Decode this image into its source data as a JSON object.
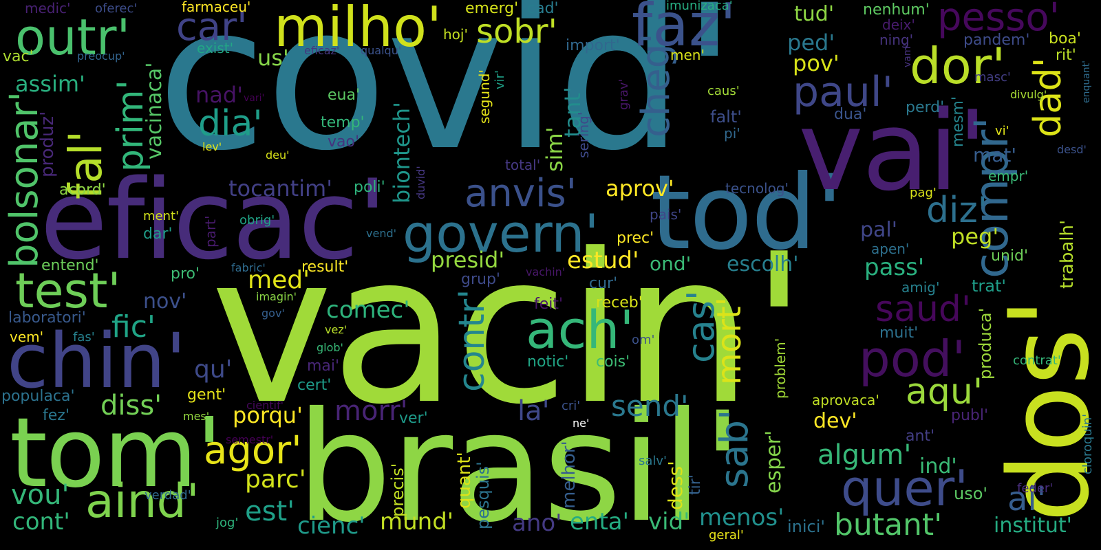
{
  "words": [
    {
      "text": "covid'",
      "color": "#2a788e"
    },
    {
      "text": "vacin'",
      "color": "#a0da39"
    },
    {
      "text": "brasil'",
      "color": "#8ed645"
    },
    {
      "text": "dos'",
      "color": "#c8e020"
    },
    {
      "text": "eficac'",
      "color": "#472c7a"
    },
    {
      "text": "tod'",
      "color": "#2f6c8e"
    },
    {
      "text": "vai'",
      "color": "#481f70"
    },
    {
      "text": "tom'",
      "color": "#7ad151"
    },
    {
      "text": "chin'",
      "color": "#414487"
    },
    {
      "text": "milho'",
      "color": "#d0e11c"
    },
    {
      "text": "faz'",
      "color": "#3b528b"
    },
    {
      "text": "outr'",
      "color": "#4ac16d"
    },
    {
      "text": "govern'",
      "color": "#2c728e"
    },
    {
      "text": "test'",
      "color": "#6ece58"
    },
    {
      "text": "bolsonar'",
      "color": "#50c46a"
    },
    {
      "text": "fal'",
      "color": "#b5de2b"
    },
    {
      "text": "aind'",
      "color": "#7fd34e"
    },
    {
      "text": "quer'",
      "color": "#3e4c8a"
    },
    {
      "text": "pod'",
      "color": "#440f5e"
    },
    {
      "text": "ach'",
      "color": "#35b779"
    },
    {
      "text": "compr'",
      "color": "#31688e"
    },
    {
      "text": "dor'",
      "color": "#bade28"
    },
    {
      "text": "paul'",
      "color": "#3f4788"
    },
    {
      "text": "pesso'",
      "color": "#46085c"
    },
    {
      "text": "cheg'",
      "color": "#355f8d"
    },
    {
      "text": "car'",
      "color": "#404387"
    },
    {
      "text": "sobr'",
      "color": "#bfdf25"
    },
    {
      "text": "dad'",
      "color": "#dde318"
    },
    {
      "text": "anvis'",
      "color": "#3b518b"
    },
    {
      "text": "prim'",
      "color": "#32b67a"
    },
    {
      "text": "dia'",
      "color": "#1f9e89"
    },
    {
      "text": "agor'",
      "color": "#e7e419"
    },
    {
      "text": "diz'",
      "color": "#2d708e"
    },
    {
      "text": "saud'",
      "color": "#46075a"
    },
    {
      "text": "contr'",
      "color": "#24868e"
    },
    {
      "text": "cas'",
      "color": "#26828e"
    },
    {
      "text": "mort'",
      "color": "#dce319"
    },
    {
      "text": "sab'",
      "color": "#2b758e"
    },
    {
      "text": "aqu'",
      "color": "#9bd93c"
    },
    {
      "text": "ai'",
      "color": "#365d8d"
    },
    {
      "text": "butant'",
      "color": "#52c569"
    },
    {
      "text": "algum'",
      "color": "#37b878"
    },
    {
      "text": "fic'",
      "color": "#20a486"
    },
    {
      "text": "diss'",
      "color": "#73d056"
    },
    {
      "text": "morr'",
      "color": "#482475"
    },
    {
      "text": "send'",
      "color": "#2a788e"
    },
    {
      "text": "est'",
      "color": "#1fa088"
    },
    {
      "text": "parc'",
      "color": "#d2e21b"
    },
    {
      "text": "vou'",
      "color": "#35b779"
    },
    {
      "text": "mund'",
      "color": "#c2df23"
    },
    {
      "text": "cienc'",
      "color": "#1f9a8a"
    },
    {
      "text": "menos'",
      "color": "#21908d"
    },
    {
      "text": "enta'",
      "color": "#25ac82"
    },
    {
      "text": "ano'",
      "color": "#443a83"
    },
    {
      "text": "vid'",
      "color": "#3aba76"
    },
    {
      "text": "la'",
      "color": "#3f4889"
    },
    {
      "text": "porqu'",
      "color": "#fde725"
    },
    {
      "text": "qu'",
      "color": "#3e4a89"
    },
    {
      "text": "med'",
      "color": "#e2e418"
    },
    {
      "text": "presid'",
      "color": "#95d840"
    },
    {
      "text": "estud'",
      "color": "#fde725"
    },
    {
      "text": "comec'",
      "color": "#2eb37c"
    },
    {
      "text": "tocantim'",
      "color": "#424086"
    },
    {
      "text": "nad'",
      "color": "#471365"
    },
    {
      "text": "assim'",
      "color": "#29af7f"
    },
    {
      "text": "vacinaca'",
      "color": "#56c667"
    },
    {
      "text": "biontech'",
      "color": "#1f968b"
    },
    {
      "text": "sim'",
      "color": "#8bd646"
    },
    {
      "text": "tant'",
      "color": "#228d8d"
    },
    {
      "text": "aprov'",
      "color": "#fde725"
    },
    {
      "text": "mesm'",
      "color": "#25858e"
    },
    {
      "text": "pass'",
      "color": "#2ab07f"
    },
    {
      "text": "escolh'",
      "color": "#277f8e"
    },
    {
      "text": "ond'",
      "color": "#3aba76"
    },
    {
      "text": "peg'",
      "color": "#c0df25"
    },
    {
      "text": "pal'",
      "color": "#404688"
    },
    {
      "text": "ped'",
      "color": "#2a788e"
    },
    {
      "text": "pov'",
      "color": "#d8e219"
    },
    {
      "text": "tud'",
      "color": "#8fd744"
    },
    {
      "text": "nenhum'",
      "color": "#5ec962"
    },
    {
      "text": "us'",
      "color": "#86d549"
    },
    {
      "text": "emerg'",
      "color": "#d5e21a"
    },
    {
      "text": "cad'",
      "color": "#287c8e"
    },
    {
      "text": "imunizaca'",
      "color": "#27ad81"
    },
    {
      "text": "farmaceu'",
      "color": "#fde725"
    },
    {
      "text": "medic'",
      "color": "#482173"
    },
    {
      "text": "oferec'",
      "color": "#3d4d8a"
    },
    {
      "text": "hoj'",
      "color": "#c5e021"
    },
    {
      "text": "exist'",
      "color": "#22a785"
    },
    {
      "text": "eficaz'",
      "color": "#453781"
    },
    {
      "text": "qualqu'",
      "color": "#3b528b"
    },
    {
      "text": "import'",
      "color": "#31688e"
    },
    {
      "text": "men'",
      "color": "#d8e219"
    },
    {
      "text": "vac'",
      "color": "#addc30"
    },
    {
      "text": "preocup'",
      "color": "#32648e"
    },
    {
      "text": "eua'",
      "color": "#5cc863"
    },
    {
      "text": "temp'",
      "color": "#34b679"
    },
    {
      "text": "vao'",
      "color": "#46337e"
    },
    {
      "text": "vari'",
      "color": "#440154"
    },
    {
      "text": "segund'",
      "color": "#e5e419"
    },
    {
      "text": "vir'",
      "color": "#1fa187"
    },
    {
      "text": "produz'",
      "color": "#482878"
    },
    {
      "text": "acord'",
      "color": "#8fd744"
    },
    {
      "text": "lev'",
      "color": "#e2e418"
    },
    {
      "text": "deu'",
      "color": "#d8e219"
    },
    {
      "text": "caus'",
      "color": "#a2da37"
    },
    {
      "text": "falt'",
      "color": "#3d4e8a"
    },
    {
      "text": "pi'",
      "color": "#31688e"
    },
    {
      "text": "grav'",
      "color": "#481668"
    },
    {
      "text": "sering'",
      "color": "#3e4989"
    },
    {
      "text": "total'",
      "color": "#453882"
    },
    {
      "text": "duvid'",
      "color": "#453781"
    },
    {
      "text": "poli'",
      "color": "#2eb37c"
    },
    {
      "text": "tecnolog'",
      "color": "#3b528b"
    },
    {
      "text": "pais'",
      "color": "#404688"
    },
    {
      "text": "obrig'",
      "color": "#20a386"
    },
    {
      "text": "ment'",
      "color": "#d2e21b"
    },
    {
      "text": "dar'",
      "color": "#1f9e89"
    },
    {
      "text": "part'",
      "color": "#481b6d"
    },
    {
      "text": "vend'",
      "color": "#2d708e"
    },
    {
      "text": "prec'",
      "color": "#fde725"
    },
    {
      "text": "entend'",
      "color": "#6ccd5a"
    },
    {
      "text": "fabric'",
      "color": "#2f6b8e"
    },
    {
      "text": "result'",
      "color": "#fde725"
    },
    {
      "text": "vachin'",
      "color": "#481769"
    },
    {
      "text": "grup'",
      "color": "#3e4a89"
    },
    {
      "text": "pro'",
      "color": "#3dbc74"
    },
    {
      "text": "nov'",
      "color": "#3c508b"
    },
    {
      "text": "imagin'",
      "color": "#8bd646"
    },
    {
      "text": "laboratori'",
      "color": "#38598c"
    },
    {
      "text": "gov'",
      "color": "#355f8d"
    },
    {
      "text": "vem'",
      "color": "#fde725"
    },
    {
      "text": "fas'",
      "color": "#26818e"
    },
    {
      "text": "vez'",
      "color": "#b8de29"
    },
    {
      "text": "glob'",
      "color": "#38b977"
    },
    {
      "text": "mai'",
      "color": "#482677"
    },
    {
      "text": "cert'",
      "color": "#1e9c89"
    },
    {
      "text": "gent'",
      "color": "#e5e419"
    },
    {
      "text": "populaca'",
      "color": "#2c728e"
    },
    {
      "text": "cientif'",
      "color": "#46085c"
    },
    {
      "text": "mes'",
      "color": "#95d840"
    },
    {
      "text": "fez'",
      "color": "#2a768e"
    },
    {
      "text": "semestr'",
      "color": "#440154"
    },
    {
      "text": "ver'",
      "color": "#1e9b8a"
    },
    {
      "text": "precis'",
      "color": "#c2df23"
    },
    {
      "text": "quant'",
      "color": "#dde318"
    },
    {
      "text": "pesquis'",
      "color": "#2c738e"
    },
    {
      "text": "melhor'",
      "color": "#355e8d"
    },
    {
      "text": "cri'",
      "color": "#3b528b"
    },
    {
      "text": "ne'",
      "color": "#ffffff"
    },
    {
      "text": "feit'",
      "color": "#481467"
    },
    {
      "text": "receb'",
      "color": "#d8e219"
    },
    {
      "text": "cur'",
      "color": "#306a8e"
    },
    {
      "text": "om'",
      "color": "#3b528b"
    },
    {
      "text": "notic'",
      "color": "#21a585"
    },
    {
      "text": "cois'",
      "color": "#3dbc74"
    },
    {
      "text": "salv'",
      "color": "#2a788e"
    },
    {
      "text": "tir'",
      "color": "#34618d"
    },
    {
      "text": "dess'",
      "color": "#dde318"
    },
    {
      "text": "esper'",
      "color": "#83d34b"
    },
    {
      "text": "problem'",
      "color": "#a2da37"
    },
    {
      "text": "dev'",
      "color": "#fde725"
    },
    {
      "text": "ind'",
      "color": "#3aba76"
    },
    {
      "text": "muit'",
      "color": "#2c718e"
    },
    {
      "text": "produca'",
      "color": "#9dd93b"
    },
    {
      "text": "contrat'",
      "color": "#35b779"
    },
    {
      "text": "aprovaca'",
      "color": "#c0df25"
    },
    {
      "text": "publ'",
      "color": "#482475"
    },
    {
      "text": "ant'",
      "color": "#433e85"
    },
    {
      "text": "uso'",
      "color": "#5cc863"
    },
    {
      "text": "feder'",
      "color": "#472d7b"
    },
    {
      "text": "cloroquin'",
      "color": "#2a788e"
    },
    {
      "text": "inici'",
      "color": "#2c728e"
    },
    {
      "text": "geral'",
      "color": "#e7e419"
    },
    {
      "text": "institut'",
      "color": "#25ab82"
    },
    {
      "text": "verdad'",
      "color": "#2f6b8e"
    },
    {
      "text": "jog'",
      "color": "#2eb37c"
    },
    {
      "text": "cont'",
      "color": "#32b67a"
    },
    {
      "text": "deix'",
      "color": "#481b6d"
    },
    {
      "text": "ning'",
      "color": "#46337e"
    },
    {
      "text": "boa'",
      "color": "#c8e020"
    },
    {
      "text": "pandem'",
      "color": "#3e4c8a"
    },
    {
      "text": "rit'",
      "color": "#bade28"
    },
    {
      "text": "vam'",
      "color": "#46327e"
    },
    {
      "text": "masc'",
      "color": "#433e85"
    },
    {
      "text": "divulg'",
      "color": "#a8db34"
    },
    {
      "text": "enquant'",
      "color": "#2f6c8e"
    },
    {
      "text": "perd'",
      "color": "#2a788e"
    },
    {
      "text": "dua'",
      "color": "#3a548c"
    },
    {
      "text": "vi'",
      "color": "#e2e418"
    },
    {
      "text": "desd'",
      "color": "#3b528b"
    },
    {
      "text": "mat'",
      "color": "#365d8d"
    },
    {
      "text": "empr'",
      "color": "#3aba76"
    },
    {
      "text": "pag'",
      "color": "#d8e219"
    },
    {
      "text": "trabalh'",
      "color": "#b5de2b"
    },
    {
      "text": "apen'",
      "color": "#2d708e"
    },
    {
      "text": "unid'",
      "color": "#6ece58"
    },
    {
      "text": "amig'",
      "color": "#26818e"
    },
    {
      "text": "trat'",
      "color": "#1f9e89"
    }
  ]
}
